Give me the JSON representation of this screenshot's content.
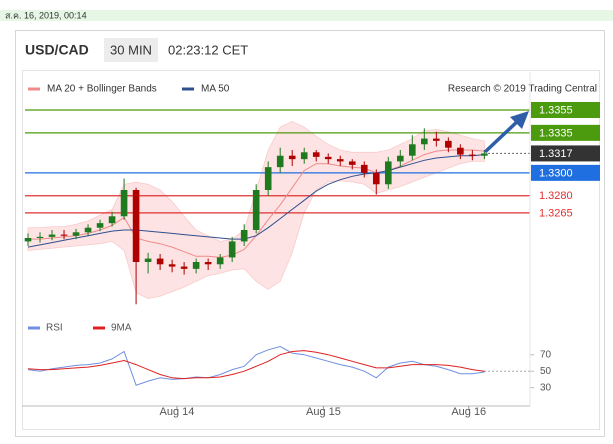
{
  "chart_data": {
    "type": "candlestick",
    "date_stamp": "ส.ค. 16, 2019, 00:14",
    "symbol": "USD/CAD",
    "interval": "30 MIN",
    "time": "02:23:12 CET",
    "source": "Research © 2019 Trading Central",
    "up_color": "#1f7a1f",
    "down_color": "#b00000",
    "open": [
      1.324,
      1.3243,
      1.3244,
      1.3246,
      1.3245,
      1.3248,
      1.3252,
      1.3256,
      1.3262,
      1.3285,
      1.3222,
      1.3225,
      1.322,
      1.3218,
      1.3216,
      1.3222,
      1.322,
      1.3226,
      1.324,
      1.325,
      1.3285,
      1.3305,
      1.3315,
      1.3312,
      1.3318,
      1.3314,
      1.3312,
      1.331,
      1.3307,
      1.33,
      1.329,
      1.331,
      1.3315,
      1.3325,
      1.333,
      1.3328,
      1.3322,
      1.3316,
      1.3315
    ],
    "high": [
      1.3247,
      1.3248,
      1.325,
      1.325,
      1.3251,
      1.3255,
      1.3259,
      1.3266,
      1.3295,
      1.3287,
      1.323,
      1.3229,
      1.3224,
      1.3222,
      1.3225,
      1.3225,
      1.3229,
      1.3244,
      1.3255,
      1.329,
      1.331,
      1.3322,
      1.332,
      1.3322,
      1.332,
      1.3317,
      1.3315,
      1.3312,
      1.331,
      1.3303,
      1.3314,
      1.332,
      1.3333,
      1.3339,
      1.3336,
      1.3331,
      1.3325,
      1.332,
      1.332
    ],
    "low": [
      1.3236,
      1.3239,
      1.3241,
      1.3242,
      1.3242,
      1.3245,
      1.3249,
      1.3253,
      1.3259,
      1.3185,
      1.3212,
      1.3215,
      1.3213,
      1.3211,
      1.3212,
      1.3215,
      1.3216,
      1.3222,
      1.3236,
      1.3247,
      1.328,
      1.33,
      1.3306,
      1.3308,
      1.331,
      1.3308,
      1.3306,
      1.3303,
      1.3296,
      1.3281,
      1.3286,
      1.3305,
      1.3311,
      1.332,
      1.3323,
      1.3318,
      1.3312,
      1.3311,
      1.3312
    ],
    "close": [
      1.3243,
      1.3244,
      1.3246,
      1.3245,
      1.3248,
      1.3252,
      1.3256,
      1.3262,
      1.3285,
      1.3222,
      1.3225,
      1.322,
      1.3218,
      1.3216,
      1.3222,
      1.322,
      1.3226,
      1.324,
      1.325,
      1.3285,
      1.3305,
      1.3315,
      1.3312,
      1.3318,
      1.3314,
      1.3312,
      1.331,
      1.3307,
      1.33,
      1.329,
      1.331,
      1.3315,
      1.3325,
      1.333,
      1.3328,
      1.3322,
      1.3316,
      1.3315,
      1.3317
    ],
    "ylim": [
      1.318,
      1.3383
    ],
    "xlim": [
      -0.5,
      41.8
    ],
    "xticks": [
      {
        "value": 12.4,
        "label": "Aug 14"
      },
      {
        "value": 24.6,
        "label": "Aug 15"
      },
      {
        "value": 36.7,
        "label": "Aug 16"
      }
    ],
    "levels": [
      {
        "value": 1.3355,
        "label": "1.3355",
        "color": "#4c9a0e",
        "box": true
      },
      {
        "value": 1.3335,
        "label": "1.3335",
        "color": "#4c9a0e",
        "box": true
      },
      {
        "value": 1.3317,
        "label": "1.3317",
        "color": "#333333",
        "box": true,
        "dotted": true
      },
      {
        "value": 1.33,
        "label": "1.3300",
        "color": "#1f6fe0",
        "box": true
      },
      {
        "value": 1.328,
        "label": "1.3280",
        "color": "#e03030",
        "box": false
      },
      {
        "value": 1.3265,
        "label": "1.3265",
        "color": "#e03030",
        "box": false
      }
    ],
    "bollinger": {
      "name": "MA 20 + Bollinger Bands",
      "color": "#f08a8a",
      "fill": "#fde3e3",
      "middle": [
        1.3242,
        1.3242,
        1.3243,
        1.3244,
        1.3245,
        1.3247,
        1.325,
        1.3254,
        1.3261,
        1.3243,
        1.324,
        1.3238,
        1.3235,
        1.3231,
        1.3227,
        1.3227,
        1.3226,
        1.3228,
        1.3233,
        1.3245,
        1.3259,
        1.3272,
        1.3287,
        1.3302,
        1.3308,
        1.3308,
        1.3306,
        1.3305,
        1.3304,
        1.33,
        1.3302,
        1.3306,
        1.3311,
        1.3316,
        1.3319,
        1.332,
        1.332,
        1.332,
        1.3319
      ],
      "upper": [
        1.3252,
        1.3252,
        1.3253,
        1.3253,
        1.3255,
        1.3258,
        1.3263,
        1.3268,
        1.329,
        1.3292,
        1.329,
        1.3285,
        1.3275,
        1.3262,
        1.325,
        1.3245,
        1.324,
        1.3242,
        1.325,
        1.3285,
        1.332,
        1.334,
        1.3345,
        1.334,
        1.3332,
        1.3325,
        1.332,
        1.3318,
        1.3318,
        1.3318,
        1.332,
        1.3325,
        1.333,
        1.3337,
        1.3338,
        1.3336,
        1.3333,
        1.333,
        1.3328
      ],
      "lower": [
        1.3232,
        1.3233,
        1.3234,
        1.3235,
        1.3236,
        1.3237,
        1.3238,
        1.324,
        1.3232,
        1.3195,
        1.319,
        1.3192,
        1.3196,
        1.32,
        1.3205,
        1.321,
        1.3212,
        1.3215,
        1.3216,
        1.3205,
        1.3198,
        1.3205,
        1.323,
        1.3265,
        1.3285,
        1.3292,
        1.3293,
        1.3292,
        1.329,
        1.3282,
        1.3285,
        1.3288,
        1.3292,
        1.3296,
        1.33,
        1.3304,
        1.3308,
        1.331,
        1.331
      ]
    },
    "ma50": {
      "name": "MA 50",
      "color": "#2f4f8f",
      "values": [
        1.3235,
        1.3237,
        1.3239,
        1.3241,
        1.3243,
        1.3245,
        1.3247,
        1.3249,
        1.325,
        1.325,
        1.3249,
        1.3248,
        1.3247,
        1.3246,
        1.3245,
        1.3244,
        1.3243,
        1.3242,
        1.3242,
        1.3245,
        1.3252,
        1.326,
        1.3268,
        1.3276,
        1.3284,
        1.329,
        1.3294,
        1.3297,
        1.3299,
        1.33,
        1.3302,
        1.3305,
        1.3308,
        1.3311,
        1.3313,
        1.3314,
        1.3315,
        1.3315,
        1.3316
      ]
    },
    "rsi": {
      "ylim": [
        15,
        94
      ],
      "yticks": [
        70,
        50,
        30
      ],
      "series": [
        {
          "name": "RSI",
          "color": "#6f8fe0",
          "values": [
            52,
            50,
            53,
            55,
            57,
            58,
            60,
            65,
            74,
            33,
            38,
            42,
            40,
            41,
            43,
            42,
            46,
            52,
            56,
            70,
            76,
            80,
            72,
            70,
            66,
            62,
            58,
            55,
            50,
            42,
            55,
            60,
            62,
            58,
            56,
            52,
            47,
            47,
            49
          ]
        },
        {
          "name": "9MA",
          "color": "#e02020",
          "values": [
            53,
            52,
            52,
            53,
            54,
            55,
            57,
            60,
            63,
            58,
            52,
            46,
            42,
            41,
            42,
            42,
            43,
            46,
            50,
            56,
            62,
            70,
            74,
            75,
            73,
            70,
            66,
            62,
            58,
            54,
            54,
            56,
            58,
            58,
            58,
            57,
            55,
            52,
            50
          ]
        }
      ]
    }
  }
}
